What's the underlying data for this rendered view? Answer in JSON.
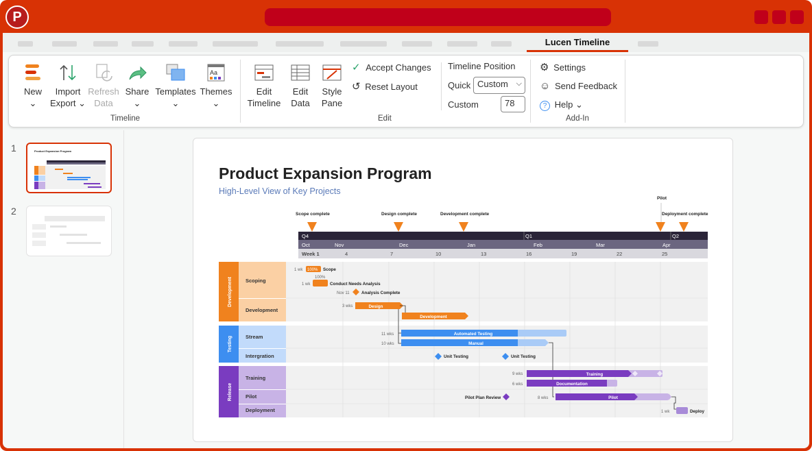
{
  "app": {
    "logo_letter": "P"
  },
  "tabs": {
    "active": "Lucen Timeline"
  },
  "ribbon": {
    "new": {
      "label": "New",
      "chev": "⌄"
    },
    "import": {
      "line1": "Import",
      "line2": "Export ⌄"
    },
    "refresh": {
      "line1": "Refresh",
      "line2": "Data"
    },
    "share": {
      "label": "Share",
      "chev": "⌄"
    },
    "templates": {
      "label": "Templates",
      "chev": "⌄"
    },
    "themes": {
      "label": "Themes",
      "chev": "⌄"
    },
    "timeline_group": "Timeline",
    "edit_timeline": {
      "line1": "Edit",
      "line2": "Timeline"
    },
    "edit_data": {
      "line1": "Edit",
      "line2": "Data"
    },
    "style_pane": {
      "line1": "Style",
      "line2": "Pane"
    },
    "accept_changes": "Accept Changes",
    "reset_layout": "Reset Layout",
    "edit_group": "Edit",
    "timeline_position": "Timeline Position",
    "quick_label": "Quick",
    "quick_value": "Custom",
    "custom_label": "Custom",
    "custom_value": "78",
    "settings": "Settings",
    "send_feedback": "Send Feedback",
    "help": "Help ⌄",
    "addin_group": "Add-In"
  },
  "slides": {
    "n1": "1",
    "n2": "2",
    "thumb_title": "Product Expansion Program"
  },
  "slide": {
    "title": "Product Expansion Program",
    "subtitle": "High-Level View of Key Projects"
  },
  "gantt": {
    "milestones_top": [
      {
        "label": "Scope complete"
      },
      {
        "label": "Design complete"
      },
      {
        "label": "Development complete"
      },
      {
        "label": "Pilot"
      },
      {
        "label": "Deployment complete"
      }
    ],
    "quarters": [
      "Q4",
      "Q1",
      "Q2"
    ],
    "months": [
      "Oct",
      "Nov",
      "Dec",
      "Jan",
      "Feb",
      "Mar",
      "Apr"
    ],
    "weeks": [
      "Week 1",
      "4",
      "7",
      "10",
      "13",
      "16",
      "19",
      "22",
      "25"
    ],
    "groups": [
      {
        "name": "Development",
        "color": "#f0821e"
      },
      {
        "name": "Testing",
        "color": "#3d8ef0"
      },
      {
        "name": "Release",
        "color": "#7a3cc0"
      }
    ],
    "rows": [
      "Scoping",
      "Development",
      "Stream",
      "Intergration",
      "Training",
      "Pilot",
      "Deployment"
    ],
    "tasks": {
      "scope_dur": "1 wk",
      "scope_pct": "100%",
      "scope_name": "Scope",
      "cna_pct": "100%",
      "cna_dur": "1 wk",
      "cna_name": "Conduct Needs Analysis",
      "ac_date": "Nov 11",
      "ac_name": "Analysis Complete",
      "design_dur": "3 wks",
      "design_name": "Design",
      "dev_name": "Development",
      "at_dur": "11 wks",
      "at_name": "Automated Testing",
      "man_dur": "10 wks",
      "man_name": "Manual",
      "ut_name": "Unit Testing",
      "tr_dur": "9 wks",
      "tr_name": "Training",
      "doc_dur": "6 wks",
      "doc_name": "Documentation",
      "ppr_name": "Pilot Plan Review",
      "pilot_dur": "8 wks",
      "pilot_name": "Pilot",
      "deploy_dur": "1 wk",
      "deploy_name": "Deploy"
    }
  },
  "colors": {
    "accent": "#d83205",
    "orange": "#f0821e",
    "blue": "#3d8ef0",
    "purple": "#7a3cc0"
  }
}
